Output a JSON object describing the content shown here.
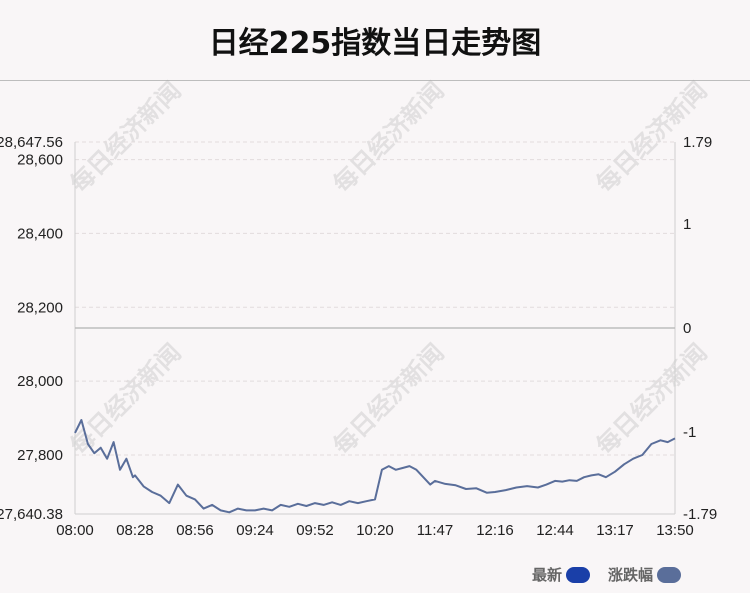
{
  "chart_data": {
    "type": "line",
    "title": "日经225指数当日走势图",
    "x_ticks": [
      "08:00",
      "08:28",
      "08:56",
      "09:24",
      "09:52",
      "10:20",
      "11:47",
      "12:16",
      "12:44",
      "13:17",
      "13:50"
    ],
    "y_left_ticks": [
      "28,647.56",
      "28,600",
      "28,400",
      "28,200",
      "28,000",
      "27,800",
      "27,640.38"
    ],
    "y_right_ticks": [
      "1.79",
      "1",
      "0",
      "-1",
      "-1.79"
    ],
    "ylim": [
      27640.38,
      28647.56
    ],
    "pct_lim": [
      -1.79,
      1.79
    ],
    "baseline_pct": 0,
    "grid": true,
    "legend_position": "bottom-right",
    "series": [
      {
        "name": "最新",
        "color": "#1a3fa8",
        "x": [
          "08:00",
          "08:03",
          "08:06",
          "08:09",
          "08:12",
          "08:15",
          "08:18",
          "08:21",
          "08:24",
          "08:27",
          "08:28",
          "08:32",
          "08:36",
          "08:40",
          "08:44",
          "08:48",
          "08:52",
          "08:56",
          "09:00",
          "09:04",
          "09:08",
          "09:12",
          "09:16",
          "09:20",
          "09:24",
          "09:28",
          "09:32",
          "09:36",
          "09:40",
          "09:44",
          "09:48",
          "09:52",
          "09:56",
          "10:00",
          "10:04",
          "10:08",
          "10:12",
          "10:16",
          "10:20",
          "10:30",
          "10:40",
          "10:50",
          "11:00",
          "11:10",
          "11:20",
          "11:30",
          "11:40",
          "11:47",
          "11:52",
          "11:57",
          "12:02",
          "12:07",
          "12:12",
          "12:16",
          "12:21",
          "12:26",
          "12:31",
          "12:36",
          "12:40",
          "12:44",
          "12:48",
          "12:52",
          "12:56",
          "13:00",
          "13:04",
          "13:08",
          "13:12",
          "13:17",
          "13:22",
          "13:27",
          "13:32",
          "13:37",
          "13:42",
          "13:46",
          "13:50"
        ],
        "values": [
          27860,
          27895,
          27830,
          27805,
          27820,
          27790,
          27835,
          27760,
          27790,
          27740,
          27745,
          27715,
          27700,
          27690,
          27670,
          27720,
          27690,
          27680,
          27655,
          27665,
          27650,
          27645,
          27655,
          27650,
          27650,
          27655,
          27650,
          27665,
          27660,
          27668,
          27662,
          27670,
          27665,
          27672,
          27665,
          27675,
          27670,
          27675,
          27680,
          27760,
          27770,
          27760,
          27765,
          27770,
          27760,
          27740,
          27720,
          27730,
          27722,
          27718,
          27708,
          27710,
          27698,
          27700,
          27705,
          27712,
          27716,
          27712,
          27720,
          27730,
          27728,
          27732,
          27730,
          27740,
          27745,
          27748,
          27740,
          27755,
          27775,
          27790,
          27800,
          27830,
          27840,
          27835,
          27845
        ]
      },
      {
        "name": "涨跌幅",
        "color": "#5a6e9a"
      }
    ]
  },
  "watermark": "每日经济新闻"
}
